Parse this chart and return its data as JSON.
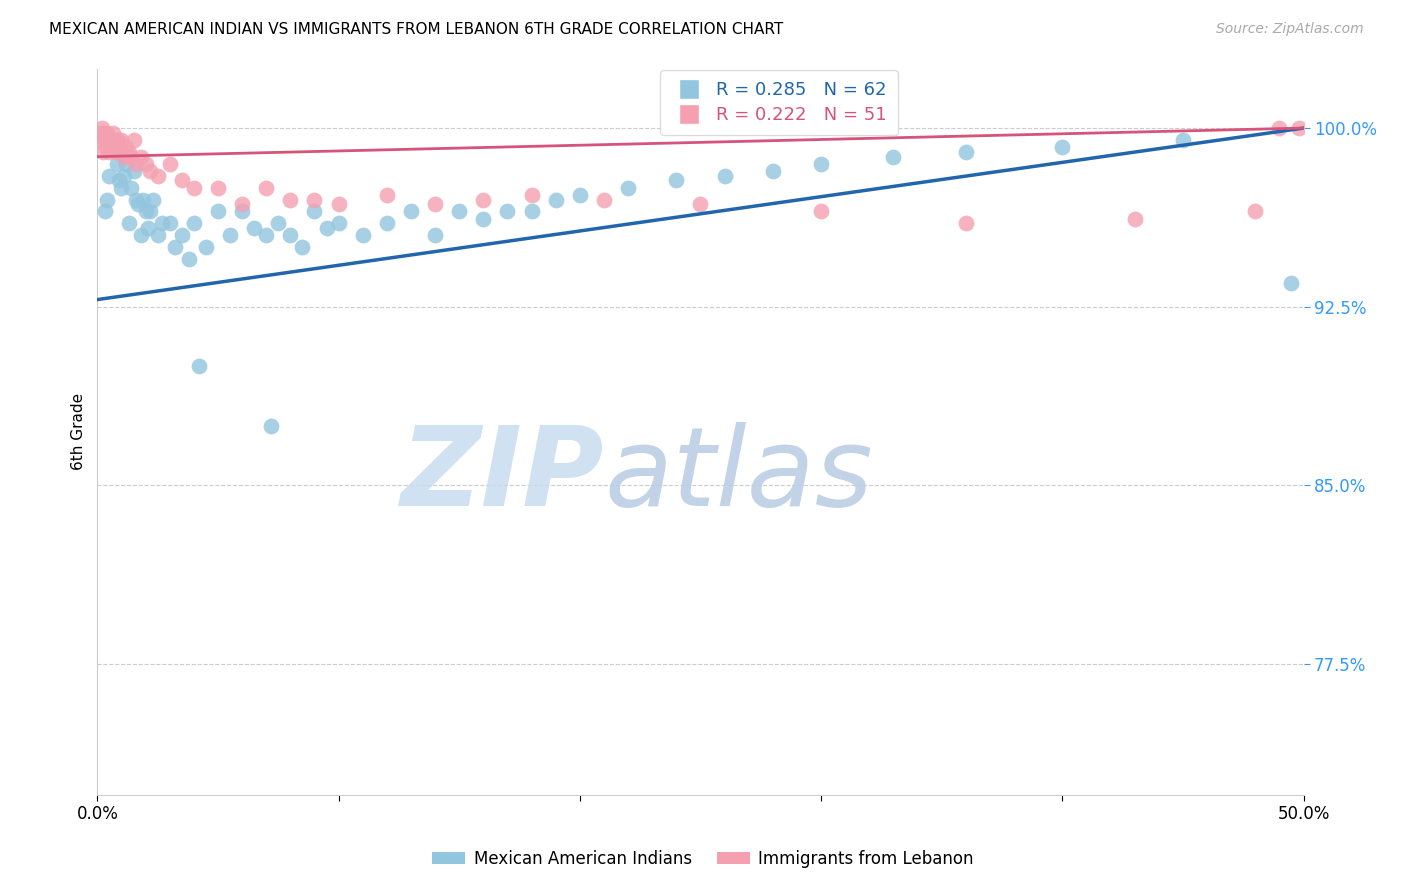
{
  "title": "MEXICAN AMERICAN INDIAN VS IMMIGRANTS FROM LEBANON 6TH GRADE CORRELATION CHART",
  "source": "Source: ZipAtlas.com",
  "ylabel": "6th Grade",
  "yticks": [
    77.5,
    85.0,
    92.5,
    100.0
  ],
  "ytick_labels": [
    "77.5%",
    "85.0%",
    "92.5%",
    "100.0%"
  ],
  "xlim": [
    0.0,
    50.0
  ],
  "ylim": [
    72.0,
    102.5
  ],
  "legend_blue_label": "Mexican American Indians",
  "legend_pink_label": "Immigrants from Lebanon",
  "r_blue": 0.285,
  "n_blue": 62,
  "r_pink": 0.222,
  "n_pink": 51,
  "watermark_zip": "ZIP",
  "watermark_atlas": "atlas",
  "blue_color": "#92c5de",
  "pink_color": "#f4a0b0",
  "line_blue": "#2166ac",
  "line_pink": "#d6537a",
  "blue_line_x0": 0.0,
  "blue_line_y0": 92.8,
  "blue_line_x1": 50.0,
  "blue_line_y1": 100.0,
  "pink_line_x0": 0.0,
  "pink_line_y0": 98.8,
  "pink_line_x1": 50.0,
  "pink_line_y1": 100.0,
  "blue_scatter_x": [
    0.3,
    0.4,
    0.5,
    0.6,
    0.7,
    0.8,
    0.9,
    1.0,
    1.1,
    1.2,
    1.3,
    1.4,
    1.5,
    1.6,
    1.7,
    1.8,
    1.9,
    2.0,
    2.1,
    2.2,
    2.3,
    2.5,
    2.7,
    3.0,
    3.2,
    3.5,
    3.8,
    4.0,
    4.5,
    5.0,
    5.5,
    6.0,
    6.5,
    7.0,
    7.5,
    8.0,
    8.5,
    9.0,
    9.5,
    10.0,
    11.0,
    12.0,
    13.0,
    14.0,
    15.0,
    16.0,
    17.0,
    18.0,
    19.0,
    20.0,
    22.0,
    24.0,
    26.0,
    28.0,
    30.0,
    33.0,
    36.0,
    40.0,
    45.0,
    49.5,
    4.2,
    7.2
  ],
  "blue_scatter_y": [
    96.5,
    97.0,
    98.0,
    99.2,
    99.5,
    98.5,
    97.8,
    97.5,
    98.0,
    98.5,
    96.0,
    97.5,
    98.2,
    97.0,
    96.8,
    95.5,
    97.0,
    96.5,
    95.8,
    96.5,
    97.0,
    95.5,
    96.0,
    96.0,
    95.0,
    95.5,
    94.5,
    96.0,
    95.0,
    96.5,
    95.5,
    96.5,
    95.8,
    95.5,
    96.0,
    95.5,
    95.0,
    96.5,
    95.8,
    96.0,
    95.5,
    96.0,
    96.5,
    95.5,
    96.5,
    96.2,
    96.5,
    96.5,
    97.0,
    97.2,
    97.5,
    97.8,
    98.0,
    98.2,
    98.5,
    98.8,
    99.0,
    99.2,
    99.5,
    93.5,
    90.0,
    87.5
  ],
  "pink_scatter_x": [
    0.1,
    0.15,
    0.2,
    0.25,
    0.3,
    0.35,
    0.4,
    0.45,
    0.5,
    0.55,
    0.6,
    0.65,
    0.7,
    0.75,
    0.8,
    0.85,
    0.9,
    0.95,
    1.0,
    1.1,
    1.2,
    1.3,
    1.4,
    1.5,
    1.6,
    1.8,
    2.0,
    2.2,
    2.5,
    3.0,
    3.5,
    4.0,
    5.0,
    6.0,
    7.0,
    8.0,
    9.0,
    10.0,
    12.0,
    14.0,
    16.0,
    18.0,
    21.0,
    25.0,
    30.0,
    36.0,
    43.0,
    48.0,
    49.0,
    49.8,
    0.22
  ],
  "pink_scatter_y": [
    99.5,
    99.8,
    100.0,
    99.8,
    99.5,
    99.2,
    99.8,
    99.5,
    99.0,
    99.5,
    99.2,
    99.8,
    99.5,
    99.2,
    99.0,
    99.5,
    99.2,
    99.0,
    99.5,
    98.8,
    99.2,
    99.0,
    98.8,
    99.5,
    98.5,
    98.8,
    98.5,
    98.2,
    98.0,
    98.5,
    97.8,
    97.5,
    97.5,
    96.8,
    97.5,
    97.0,
    97.0,
    96.8,
    97.2,
    96.8,
    97.0,
    97.2,
    97.0,
    96.8,
    96.5,
    96.0,
    96.2,
    96.5,
    100.0,
    100.0,
    99.0
  ]
}
